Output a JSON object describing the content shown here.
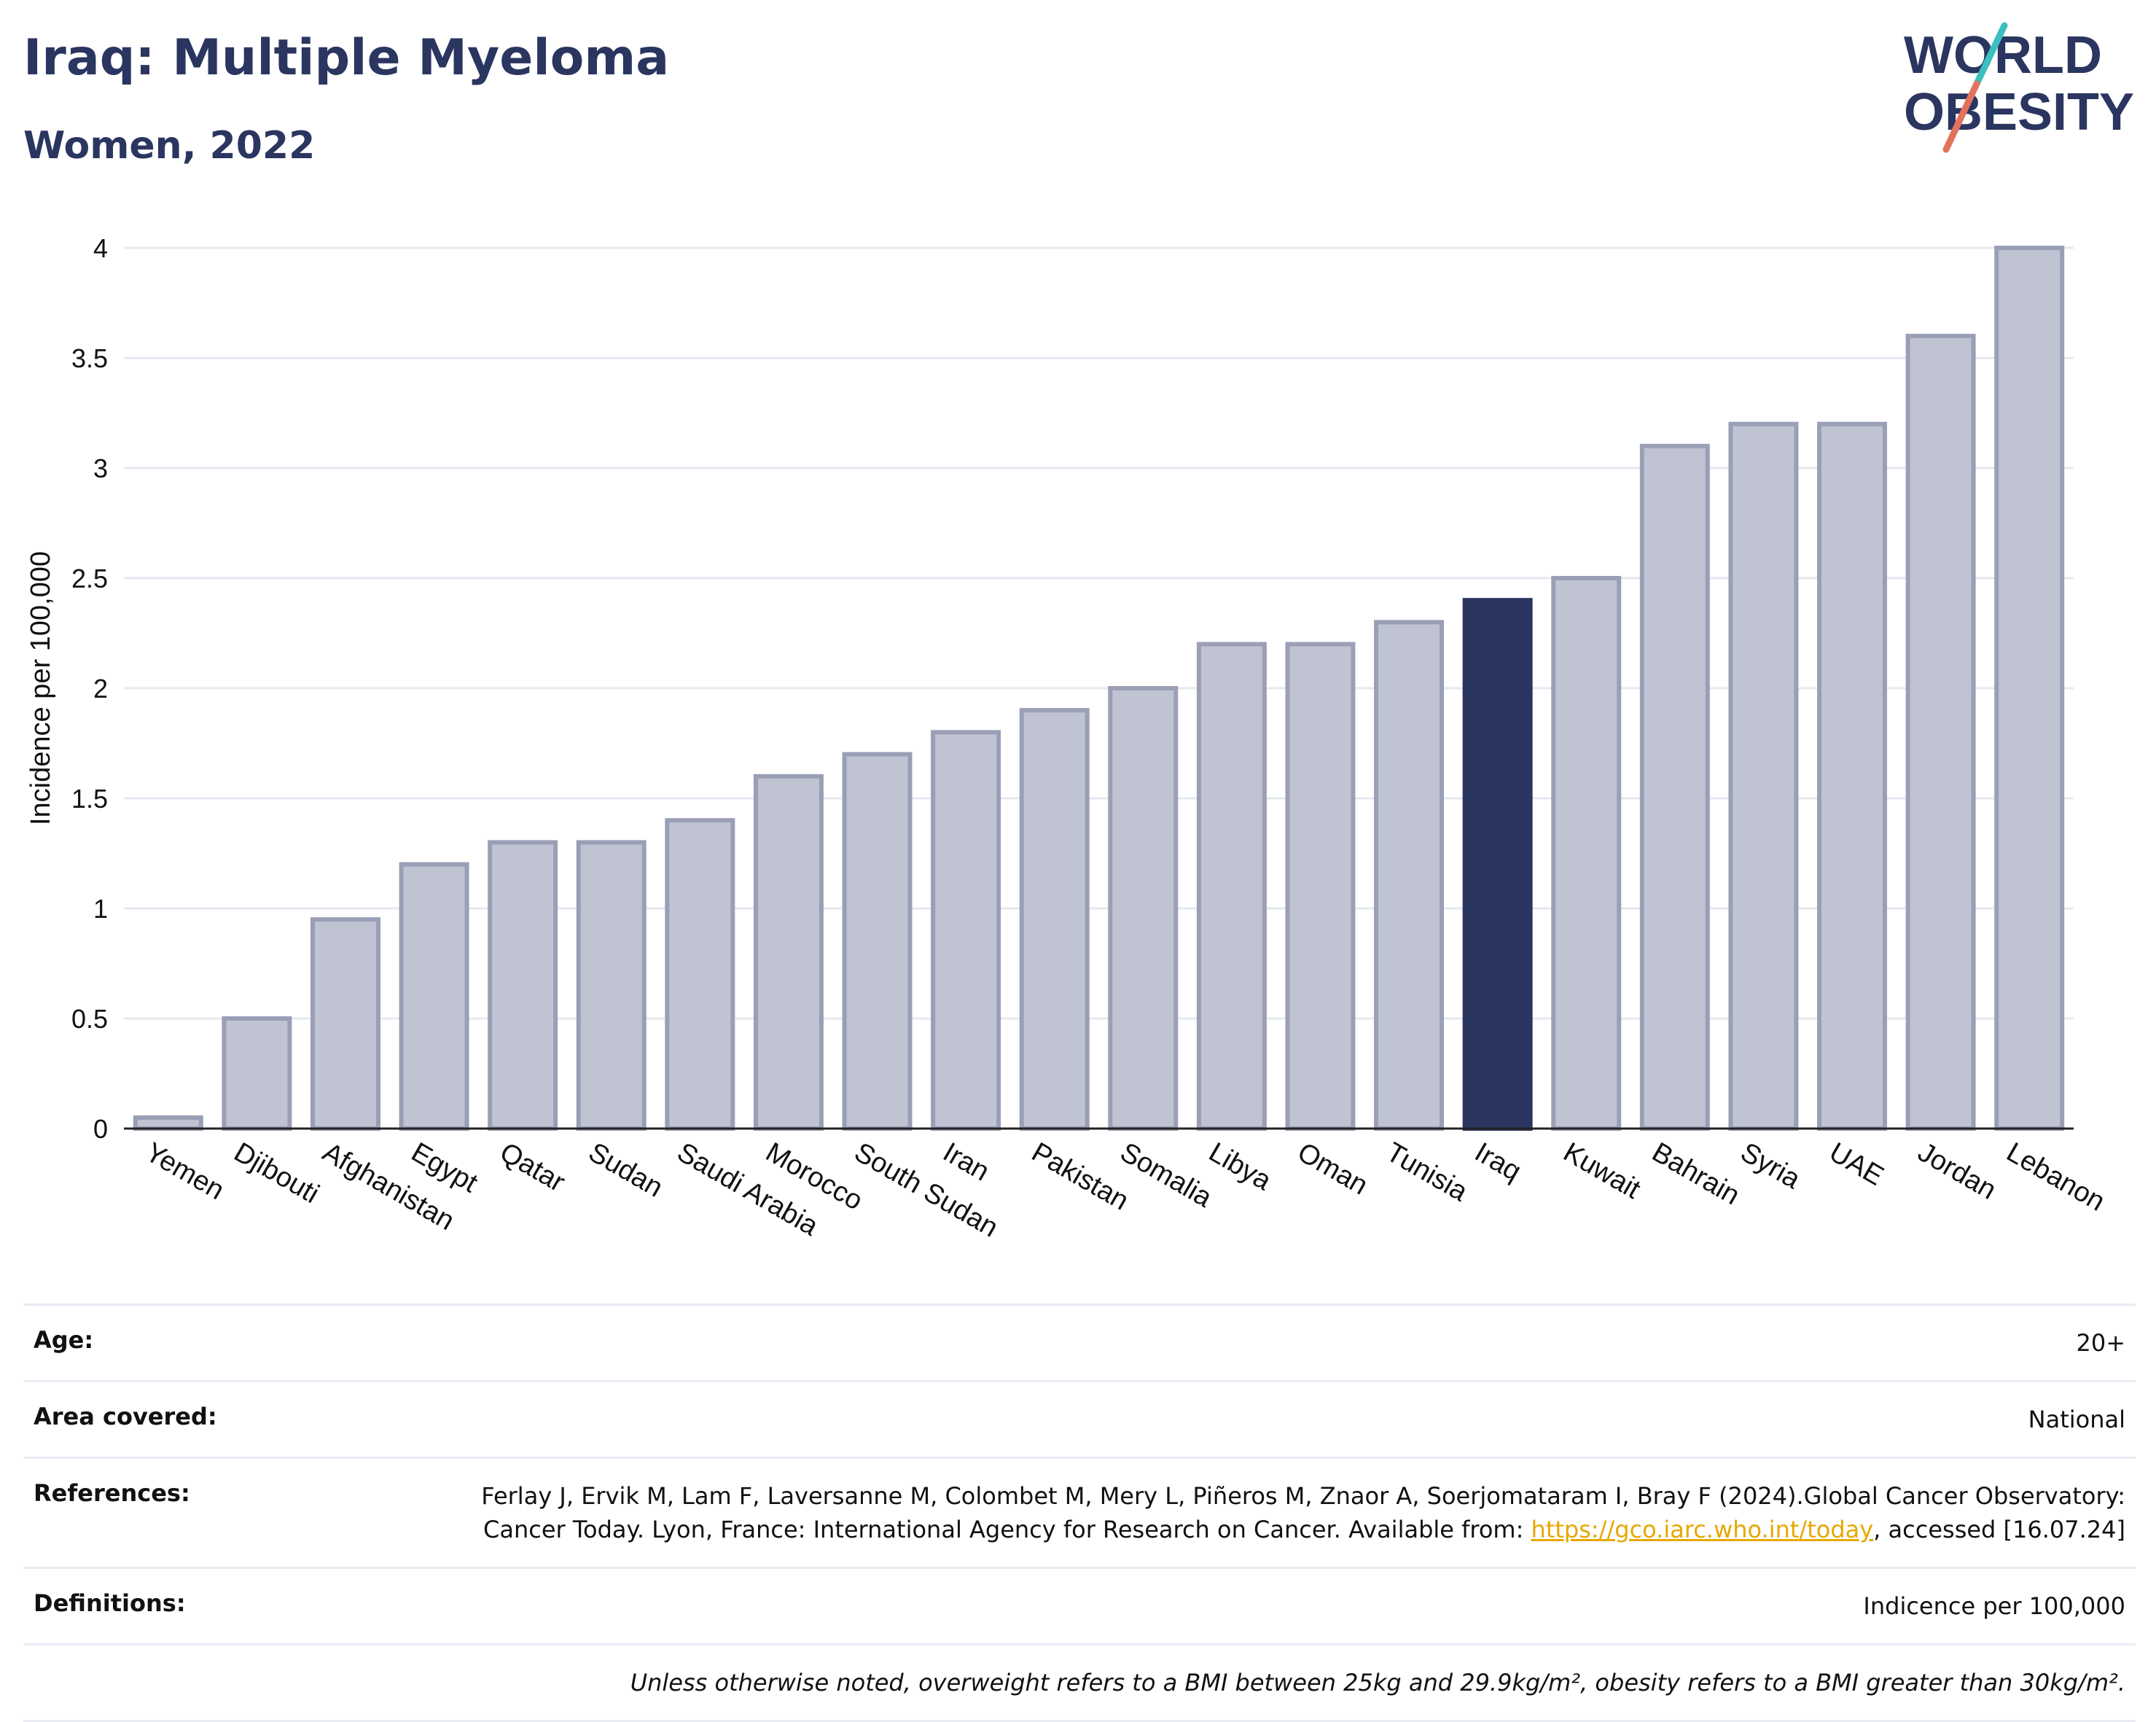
{
  "header": {
    "title": "Iraq: Multiple Myeloma",
    "subtitle": "Women, 2022",
    "logo_line1": "WORLD",
    "logo_line2": "OBESITY"
  },
  "colors": {
    "navy": "#2a3560",
    "bar_default": "#c0c3d1",
    "bar_border": "#9a9fb6",
    "highlight": "#2a3560",
    "logo_teal": "#3bbfbf",
    "logo_coral": "#e2735d"
  },
  "chart_data": {
    "type": "bar",
    "ylabel": "Incidence per 100,000",
    "ylim": [
      0,
      4
    ],
    "yticks": [
      0,
      0.5,
      1,
      1.5,
      2,
      2.5,
      3,
      3.5,
      4
    ],
    "ytick_labels": [
      "0",
      "0.5",
      "1",
      "1.5",
      "2",
      "2.5",
      "3",
      "3.5",
      "4"
    ],
    "grid": true,
    "highlight": "Iraq",
    "categories": [
      "Yemen",
      "Djibouti",
      "Afghanistan",
      "Egypt",
      "Qatar",
      "Sudan",
      "Saudi Arabia",
      "Morocco",
      "South Sudan",
      "Iran",
      "Pakistan",
      "Somalia",
      "Libya",
      "Oman",
      "Tunisia",
      "Iraq",
      "Kuwait",
      "Bahrain",
      "Syria",
      "UAE",
      "Jordan",
      "Lebanon"
    ],
    "values": [
      0.05,
      0.5,
      0.95,
      1.2,
      1.3,
      1.3,
      1.4,
      1.6,
      1.7,
      1.8,
      1.9,
      2.0,
      2.2,
      2.2,
      2.3,
      2.4,
      2.5,
      3.1,
      3.2,
      3.2,
      3.6,
      4.0
    ]
  },
  "info": {
    "age_label": "Age:",
    "age_value": "20+",
    "area_label": "Area covered:",
    "area_value": "National",
    "references_label": "References:",
    "references_text_1": "Ferlay J, Ervik M, Lam F, Laversanne M, Colombet M, Mery L, Piñeros M, Znaor A, Soerjomataram I, Bray F (2024).Global Cancer Observatory: Cancer Today. Lyon, France: International Agency for Research on Cancer. Available from: ",
    "references_link": "https://gco.iarc.who.int/today",
    "references_text_2": ", accessed [16.07.24]",
    "definitions_label": "Definitions:",
    "definitions_value": "Indicence per 100,000",
    "note": "Unless otherwise noted, overweight refers to a BMI between 25kg and 29.9kg/m², obesity refers to a BMI greater than 30kg/m²."
  }
}
